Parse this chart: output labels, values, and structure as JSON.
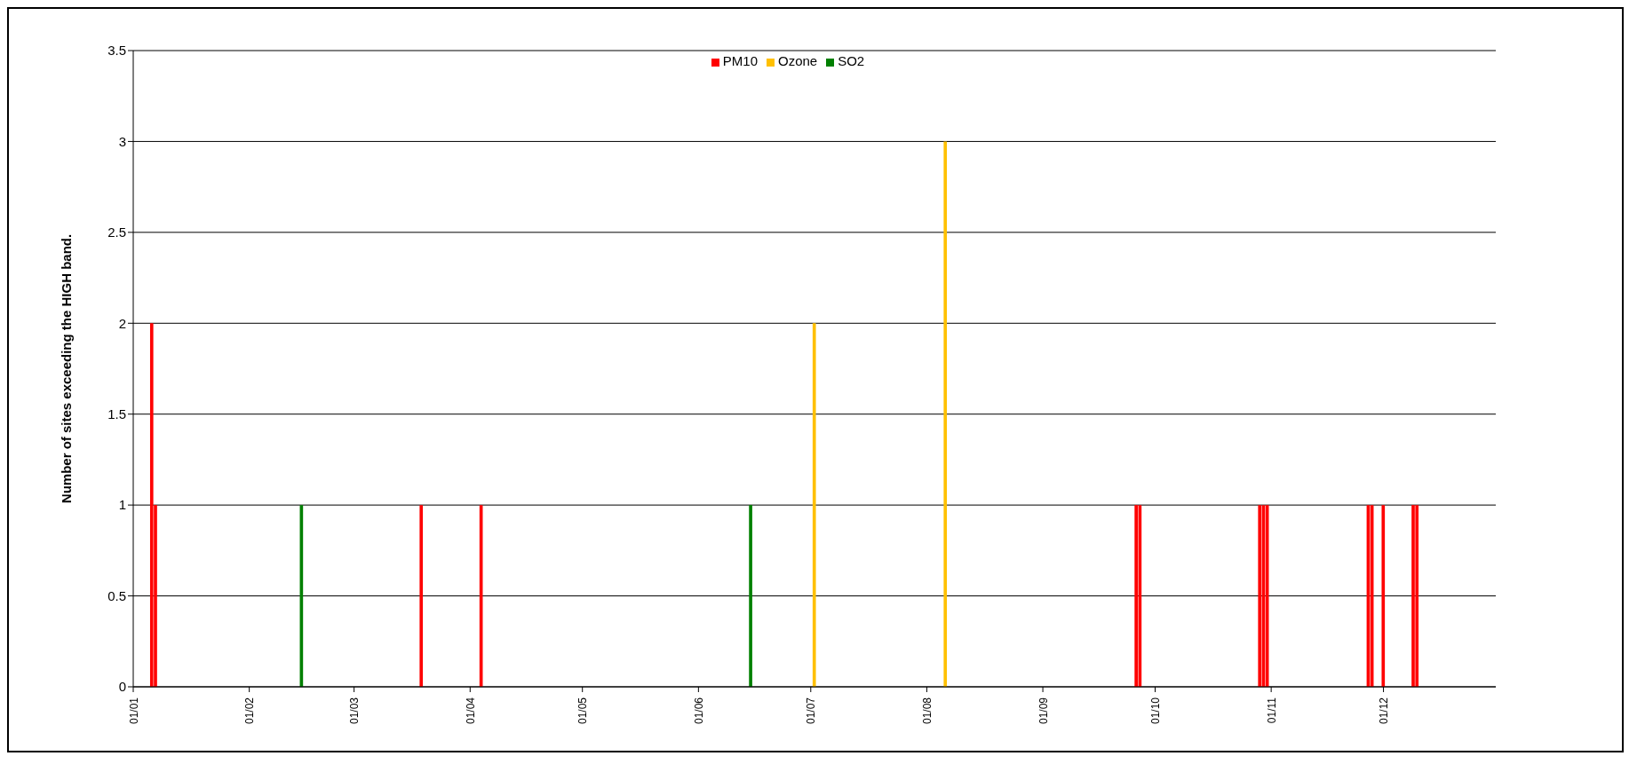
{
  "chart_data": {
    "type": "bar",
    "ylabel": "Number of sites exceeding the HIGH band.",
    "xlim": [
      "--01-01",
      "--12-31"
    ],
    "xticks": [
      {
        "value": "--01-01",
        "label": "01/01"
      },
      {
        "value": "--02-01",
        "label": "01/02"
      },
      {
        "value": "--03-01",
        "label": "01/03"
      },
      {
        "value": "--04-01",
        "label": "01/04"
      },
      {
        "value": "--05-01",
        "label": "01/05"
      },
      {
        "value": "--06-01",
        "label": "01/06"
      },
      {
        "value": "--07-01",
        "label": "01/07"
      },
      {
        "value": "--08-01",
        "label": "01/08"
      },
      {
        "value": "--09-01",
        "label": "01/09"
      },
      {
        "value": "--10-01",
        "label": "01/10"
      },
      {
        "value": "--11-01",
        "label": "01/11"
      },
      {
        "value": "--12-01",
        "label": "01/12"
      }
    ],
    "ylim": [
      0,
      3.5
    ],
    "yticks": [
      0,
      0.5,
      1,
      1.5,
      2,
      2.5,
      3,
      3.5
    ],
    "series": [
      {
        "name": "PM10",
        "color": "#ff0000",
        "x": [
          "--01-06",
          "--01-07",
          "--03-19",
          "--04-04",
          "--09-26",
          "--09-27",
          "--10-29",
          "--10-30",
          "--10-31",
          "--11-27",
          "--11-28",
          "--12-01",
          "--12-09",
          "--12-10"
        ],
        "values": [
          2,
          1,
          1,
          1,
          1,
          1,
          1,
          1,
          1,
          1,
          1,
          1,
          1,
          1
        ]
      },
      {
        "name": "Ozone",
        "color": "#ffc000",
        "x": [
          "--07-02",
          "--08-06"
        ],
        "values": [
          2,
          3
        ]
      },
      {
        "name": "SO2",
        "color": "#008000",
        "x": [
          "--02-15",
          "--06-15"
        ],
        "values": [
          1,
          1
        ]
      }
    ],
    "grid": "y",
    "legend": "top"
  }
}
